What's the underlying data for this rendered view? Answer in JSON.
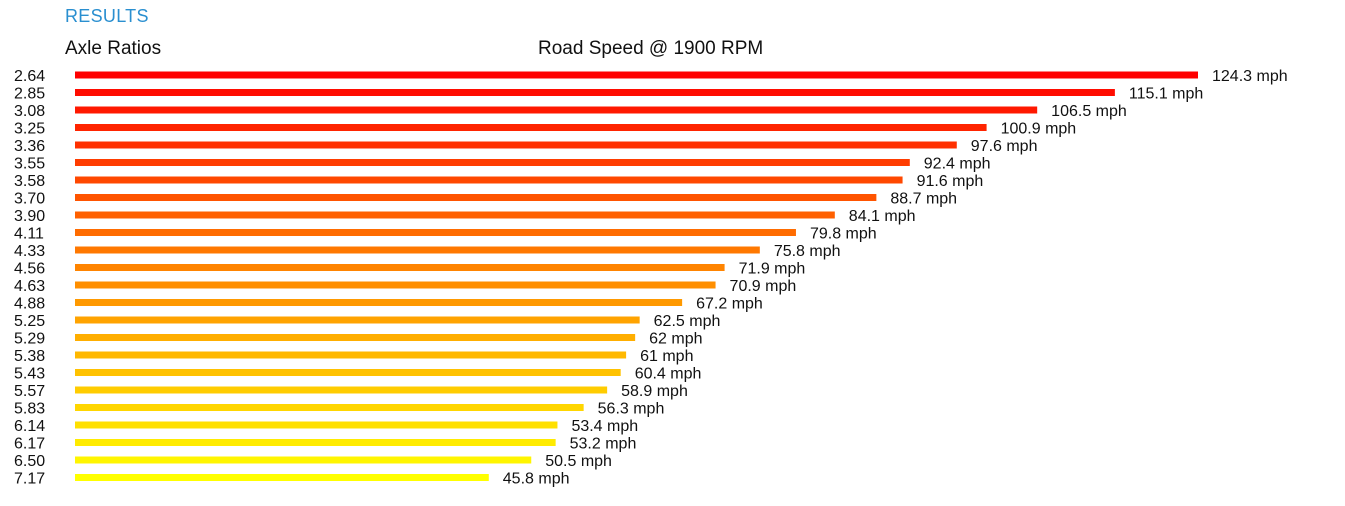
{
  "results_title": "RESULTS",
  "chart_data": {
    "type": "bar",
    "orientation": "horizontal",
    "title": "Road Speed @ 1900 RPM",
    "category_label": "Axle Ratios",
    "unit_suffix": " mph",
    "categories": [
      "2.64",
      "2.85",
      "3.08",
      "3.25",
      "3.36",
      "3.55",
      "3.58",
      "3.70",
      "3.90",
      "4.11",
      "4.33",
      "4.56",
      "4.63",
      "4.88",
      "5.25",
      "5.29",
      "5.38",
      "5.43",
      "5.57",
      "5.83",
      "6.14",
      "6.17",
      "6.50",
      "7.17"
    ],
    "values": [
      124.3,
      115.1,
      106.5,
      100.9,
      97.6,
      92.4,
      91.6,
      88.7,
      84.1,
      79.8,
      75.8,
      71.9,
      70.9,
      67.2,
      62.5,
      62,
      61,
      60.4,
      58.9,
      56.3,
      53.4,
      53.2,
      50.5,
      45.8
    ],
    "value_labels": [
      "124.3 mph",
      "115.1 mph",
      "106.5 mph",
      "100.9 mph",
      "97.6 mph",
      "92.4 mph",
      "91.6 mph",
      "88.7 mph",
      "84.1 mph",
      "79.8 mph",
      "75.8 mph",
      "71.9 mph",
      "70.9 mph",
      "67.2 mph",
      "62.5 mph",
      "62 mph",
      "61 mph",
      "60.4 mph",
      "58.9 mph",
      "56.3 mph",
      "53.4 mph",
      "53.2 mph",
      "50.5 mph",
      "45.8 mph"
    ],
    "color_gradient": [
      "#ff0000",
      "#ff8a00",
      "#ffff00"
    ],
    "grid": false,
    "legend": "none"
  }
}
